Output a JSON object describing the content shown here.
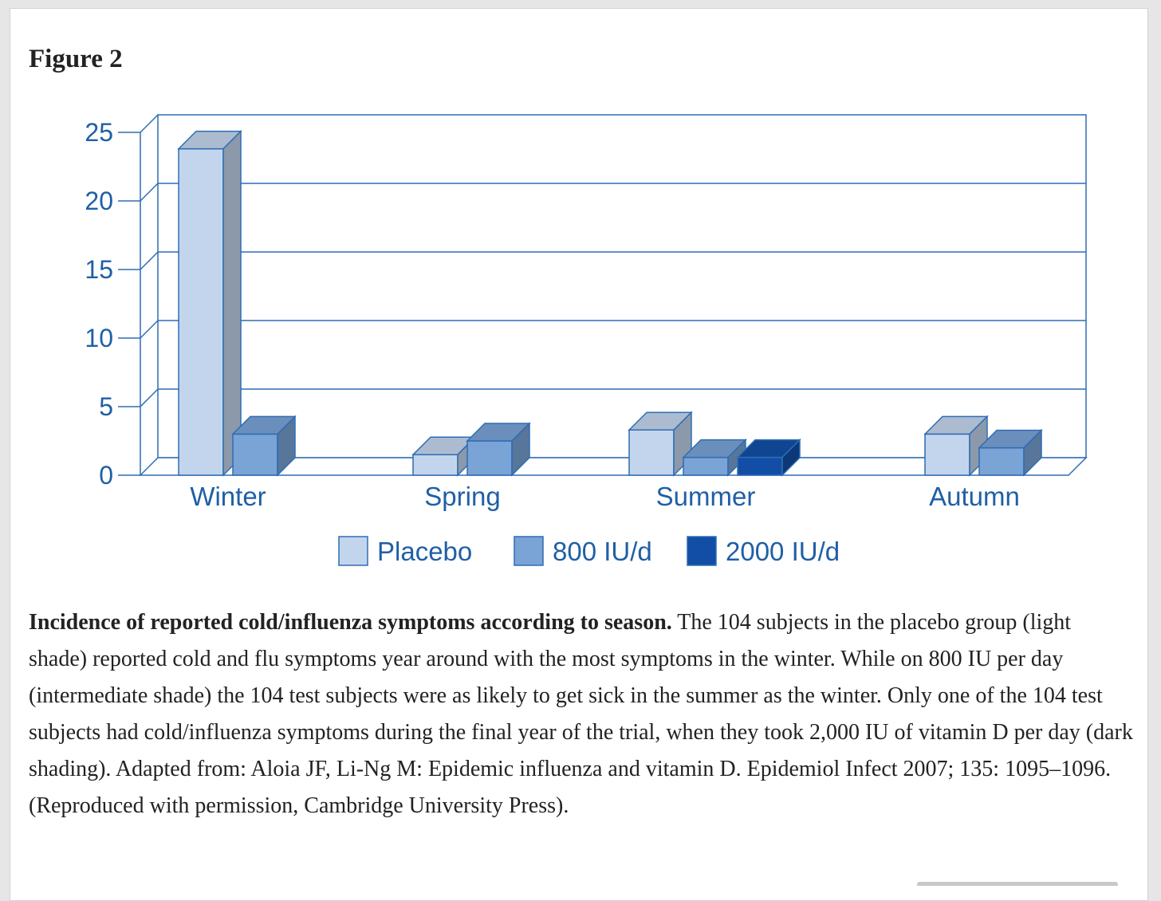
{
  "figure": {
    "label": "Figure 2",
    "caption_bold": "Incidence of reported cold/influenza symptoms according to season.",
    "caption_text": " The 104 subjects in the placebo group (light shade) reported cold and flu symptoms year around with the most symptoms in the winter. While on 800 IU per day (intermediate shade) the 104 test subjects were as likely to get sick in the summer as the winter. Only one of the 104 test subjects had cold/influenza symptoms during the final year of the trial, when they took 2,000 IU of vitamin D per day (dark shading). Adapted from: Aloia JF, Li-Ng M: Epidemic influenza and vitamin D. Epidemiol Infect 2007; 135: 1095–1096. (Reproduced with permission, Cambridge University Press)."
  },
  "chart_data": {
    "type": "bar",
    "style": "3d",
    "title": "",
    "xlabel": "",
    "ylabel": "",
    "categories": [
      "Winter",
      "Spring",
      "Summer",
      "Autumn"
    ],
    "ylim": [
      0,
      25
    ],
    "yticks": [
      0,
      5,
      10,
      15,
      20,
      25
    ],
    "grid": true,
    "legend_position": "bottom",
    "series": [
      {
        "name": "Placebo",
        "values": [
          23.8,
          1.5,
          3.3,
          3.0
        ],
        "color": "#c3d5ec"
      },
      {
        "name": "800 IU/d",
        "values": [
          3.0,
          2.5,
          1.3,
          2.0
        ],
        "color": "#7aa3d6"
      },
      {
        "name": "2000 IU/d",
        "values": [
          null,
          null,
          1.3,
          null
        ],
        "color": "#124ea5"
      }
    ]
  },
  "colors": {
    "axis": "#2e6db4",
    "text_blue": "#1f5fa6",
    "text_body": "#222222"
  }
}
